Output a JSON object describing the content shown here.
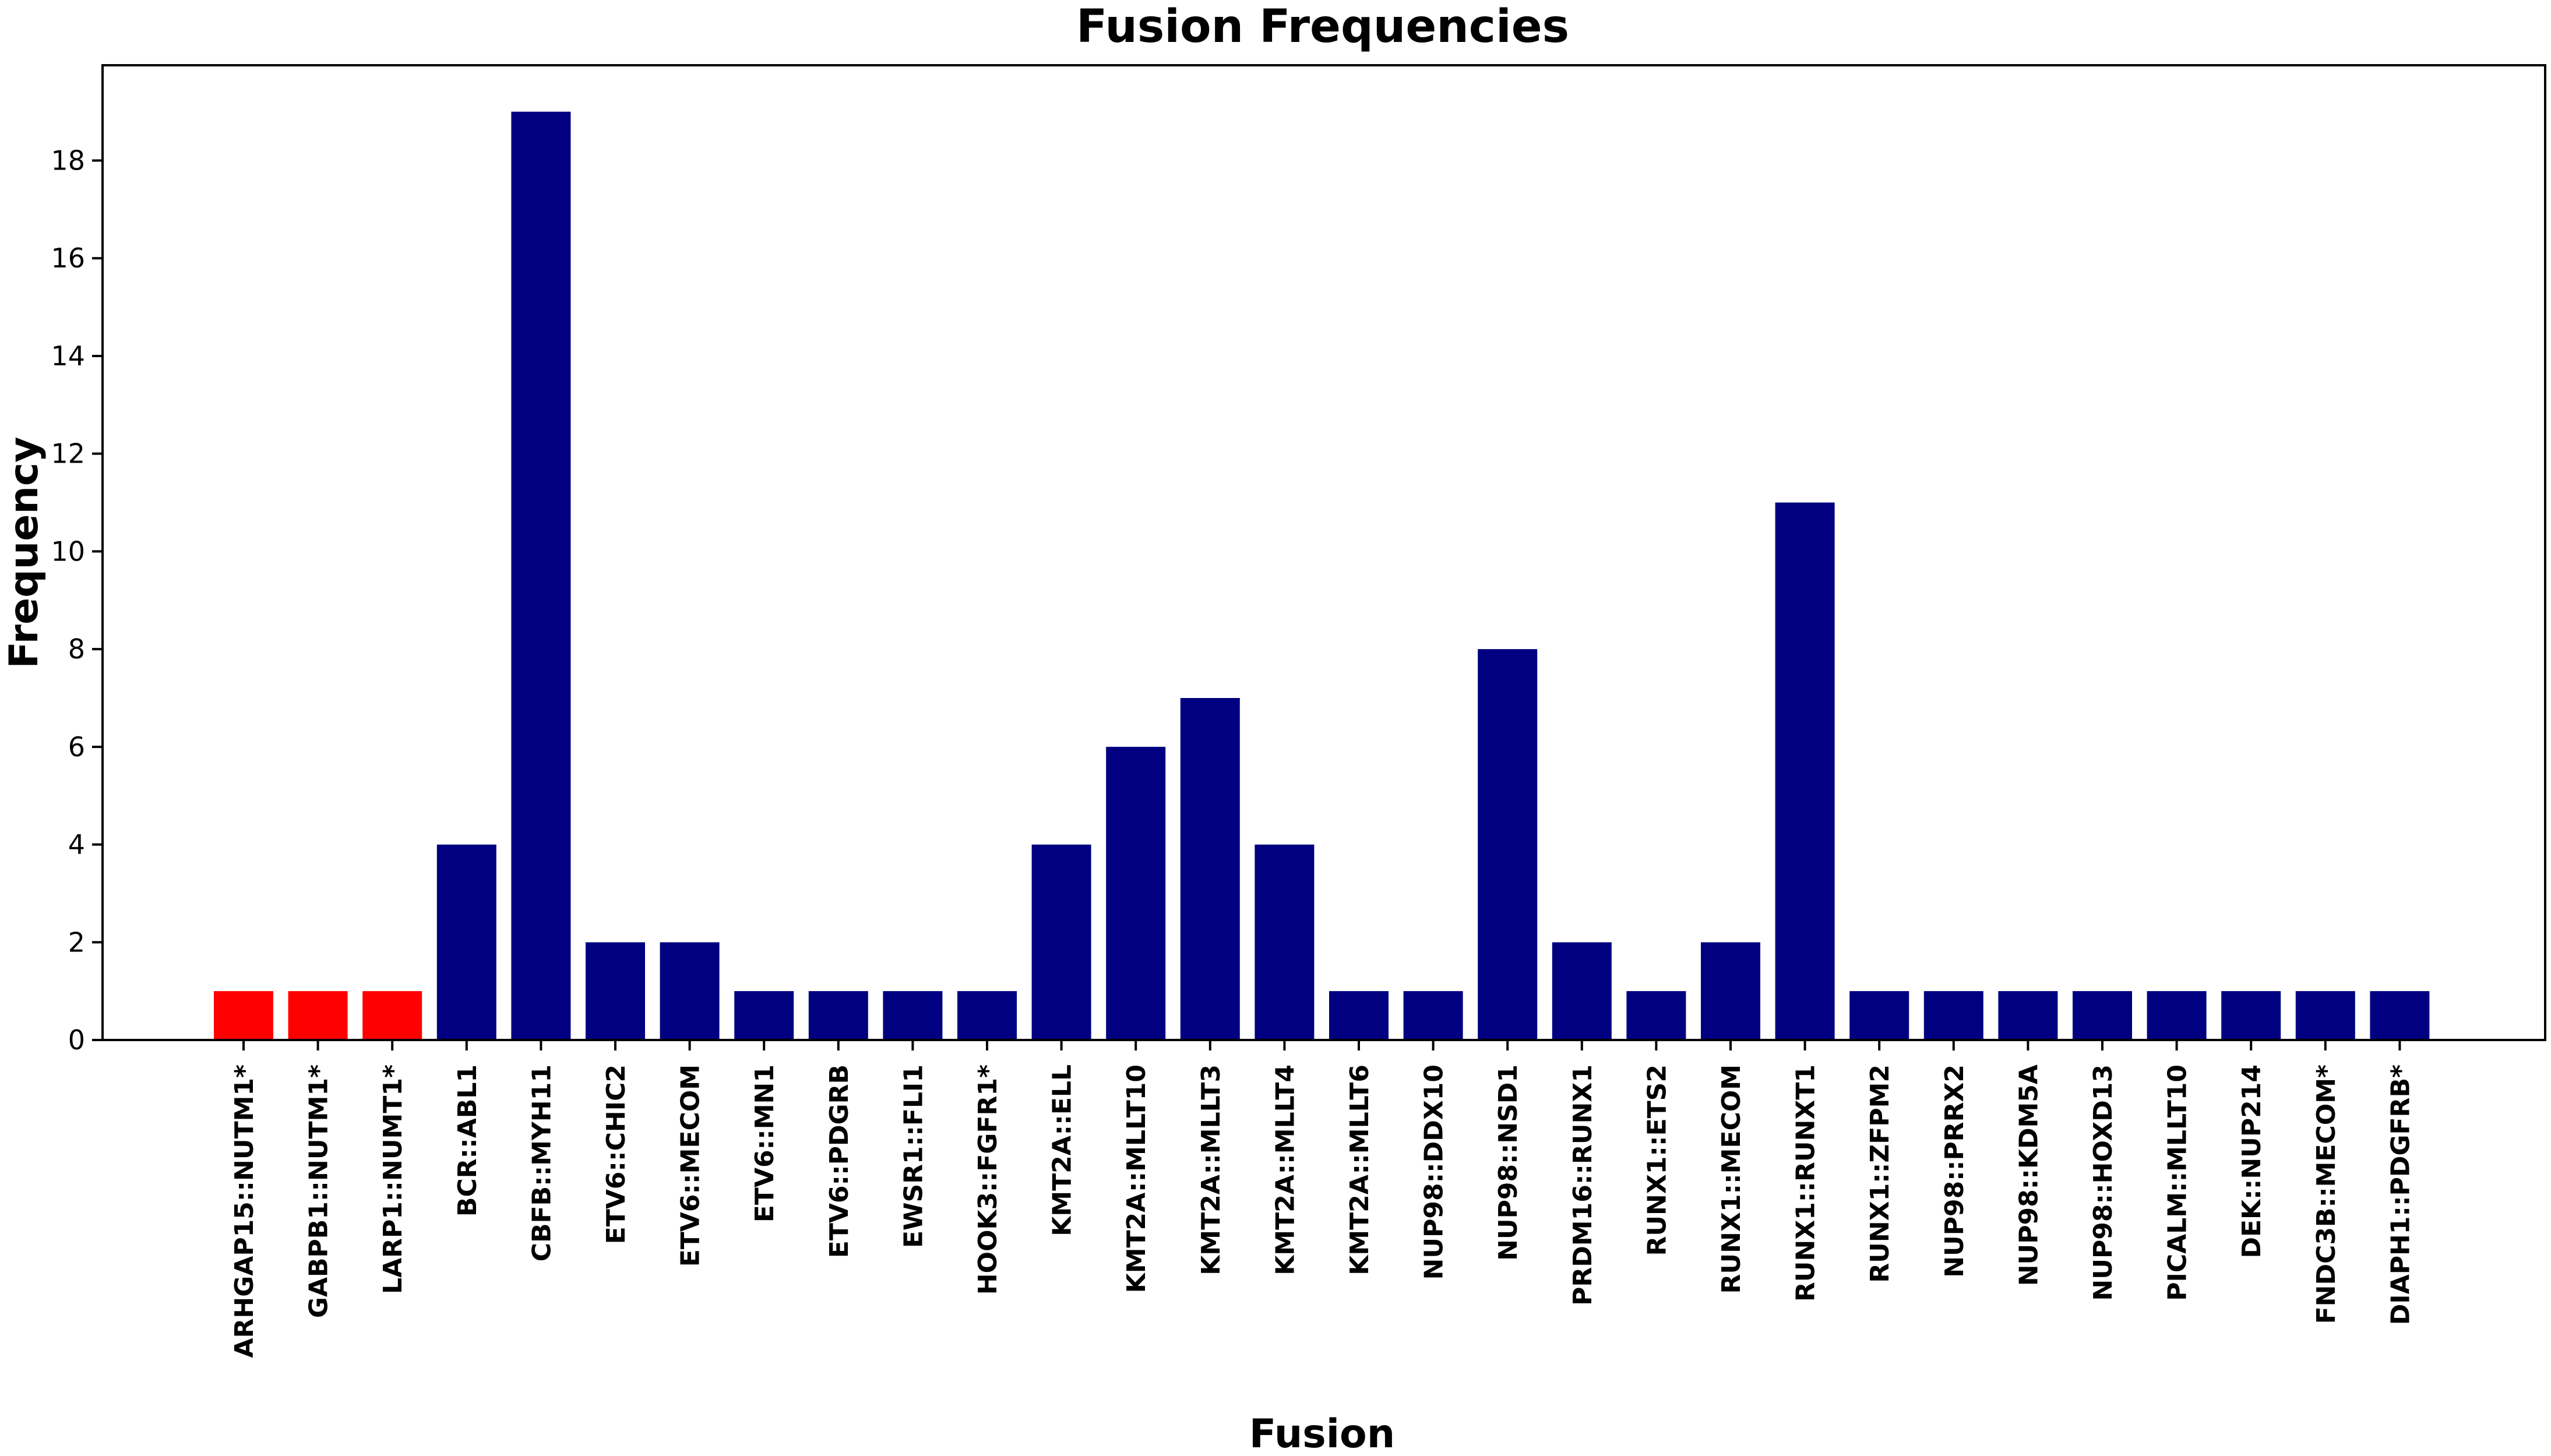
{
  "chart_data": {
    "type": "bar",
    "title": "Fusion Frequencies",
    "xlabel": "Fusion",
    "ylabel": "Frequency",
    "ylim": [
      0,
      19.95
    ],
    "yticks": [
      0,
      2,
      4,
      6,
      8,
      10,
      12,
      14,
      16,
      18
    ],
    "grid": false,
    "categories": [
      "ARHGAP15::NUTM1*",
      "GABPB1::NUTM1*",
      "LARP1::NUMT1*",
      "BCR::ABL1",
      "CBFB::MYH11",
      "ETV6::CHIC2",
      "ETV6::MECOM",
      "ETV6::MN1",
      "ETV6::PDGRB",
      "EWSR1::FLI1",
      "HOOK3::FGFR1*",
      "KMT2A::ELL",
      "KMT2A::MLLT10",
      "KMT2A::MLLT3",
      "KMT2A::MLLT4",
      "KMT2A::MLLT6",
      "NUP98::DDX10",
      "NUP98::NSD1",
      "PRDM16::RUNX1",
      "RUNX1::ETS2",
      "RUNX1::MECOM",
      "RUNX1::RUNXT1",
      "RUNX1::ZFPM2",
      "NUP98::PRRX2",
      "NUP98::KDM5A",
      "NUP98::HOXD13",
      "PICALM::MLLT10",
      "DEK::NUP214",
      "FNDC3B::MECOM*",
      "DIAPH1::PDGFRB*"
    ],
    "values": [
      1,
      1,
      1,
      4,
      19,
      2,
      2,
      1,
      1,
      1,
      1,
      4,
      6,
      7,
      4,
      1,
      1,
      8,
      2,
      1,
      2,
      11,
      1,
      1,
      1,
      1,
      1,
      1,
      1,
      1
    ],
    "bar_colors": [
      "#ff0000",
      "#ff0000",
      "#ff0000",
      "#000080",
      "#000080",
      "#000080",
      "#000080",
      "#000080",
      "#000080",
      "#000080",
      "#000080",
      "#000080",
      "#000080",
      "#000080",
      "#000080",
      "#000080",
      "#000080",
      "#000080",
      "#000080",
      "#000080",
      "#000080",
      "#000080",
      "#000080",
      "#000080",
      "#000080",
      "#000080",
      "#000080",
      "#000080",
      "#000080",
      "#000080"
    ]
  }
}
